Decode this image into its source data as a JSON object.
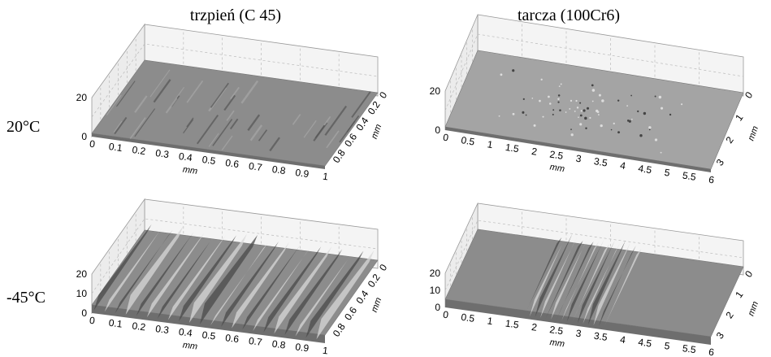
{
  "columns": [
    "trzpień (C 45)",
    "tarcza (100Cr6)"
  ],
  "rows": [
    "20°C",
    "-45°C"
  ],
  "panels": [
    {
      "z_ticks": [
        "0",
        "20"
      ],
      "x_ticks": [
        "0",
        "0.1",
        "0.2",
        "0.3",
        "0.4",
        "0.5",
        "0.6",
        "0.7",
        "0.8",
        "0.9",
        "1"
      ],
      "x_label": "mm",
      "y_ticks": [
        "0.8",
        "0.6",
        "0.4",
        "0.2",
        "0"
      ],
      "y_label": "mm"
    },
    {
      "z_ticks": [
        "0",
        "20"
      ],
      "x_ticks": [
        "0",
        "0.5",
        "1",
        "1.5",
        "2",
        "2.5",
        "3",
        "3.5",
        "4",
        "4.5",
        "5",
        "5.5",
        "6"
      ],
      "x_label": "mm",
      "y_ticks": [
        "3",
        "2",
        "1",
        "0"
      ],
      "y_label": "mm"
    },
    {
      "z_ticks": [
        "0",
        "10",
        "20"
      ],
      "x_ticks": [
        "0",
        "0.1",
        "0.2",
        "0.3",
        "0.4",
        "0.5",
        "0.6",
        "0.7",
        "0.8",
        "0.9",
        "1"
      ],
      "x_label": "mm",
      "y_ticks": [
        "0.8",
        "0.6",
        "0.4",
        "0.2",
        "0"
      ],
      "y_label": "mm"
    },
    {
      "z_ticks": [
        "0",
        "10",
        "20"
      ],
      "x_ticks": [
        "0",
        "0.5",
        "1",
        "1.5",
        "2",
        "2.5",
        "3",
        "3.5",
        "4",
        "4.5",
        "5",
        "5.5",
        "6"
      ],
      "x_label": "mm",
      "y_ticks": [
        "3",
        "2",
        "1",
        "0"
      ],
      "y_label": "mm"
    }
  ]
}
